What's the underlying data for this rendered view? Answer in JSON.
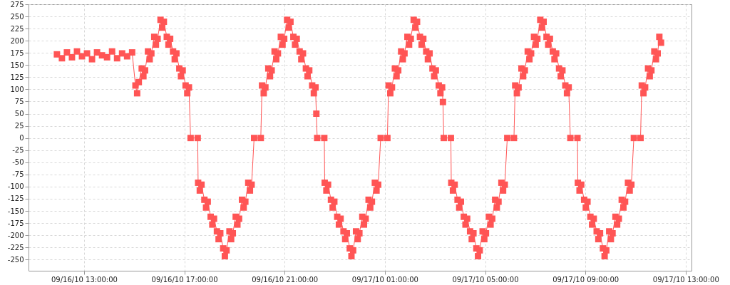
{
  "chart_data": {
    "type": "line",
    "marker": "square",
    "line_style": "solid",
    "grid": true,
    "xlim": [
      "--09-16T10:47",
      "--09-17T13:14"
    ],
    "ylim": [
      -273,
      275
    ],
    "xticks": [
      {
        "value": "--09-16T13:00",
        "label": "09/16/10 13:00:00"
      },
      {
        "value": "--09-16T17:00",
        "label": "09/16/10 17:00:00"
      },
      {
        "value": "--09-16T21:00",
        "label": "09/16/10 21:00:00"
      },
      {
        "value": "--09-17T01:00",
        "label": "09/17/10 01:00:00"
      },
      {
        "value": "--09-17T05:00",
        "label": "09/17/10 05:00:00"
      },
      {
        "value": "--09-17T09:00",
        "label": "09/17/10 09:00:00"
      },
      {
        "value": "--09-17T13:00",
        "label": "09/17/10 13:00:00"
      }
    ],
    "yticks": [
      -250,
      -225,
      -200,
      -175,
      -150,
      -125,
      -100,
      -75,
      -50,
      -25,
      0,
      25,
      50,
      75,
      100,
      125,
      150,
      175,
      200,
      225,
      250,
      275
    ],
    "series": [
      {
        "color": "#ff5555",
        "x": [
          "--09-16T11:55",
          "--09-16T12:07",
          "--09-16T12:19",
          "--09-16T12:31",
          "--09-16T12:43",
          "--09-16T12:55",
          "--09-16T13:07",
          "--09-16T13:19",
          "--09-16T13:31",
          "--09-16T13:43",
          "--09-16T13:55",
          "--09-16T14:07",
          "--09-16T14:19",
          "--09-16T14:31",
          "--09-16T14:43",
          "--09-16T14:55",
          "--09-16T15:03",
          "--09-16T15:07",
          "--09-16T15:11",
          "--09-16T15:18",
          "--09-16T15:22",
          "--09-16T15:26",
          "--09-16T15:33",
          "--09-16T15:37",
          "--09-16T15:41",
          "--09-16T15:48",
          "--09-16T15:52",
          "--09-16T15:56",
          "--09-16T16:03",
          "--09-16T16:07",
          "--09-16T16:11",
          "--09-16T16:18",
          "--09-16T16:22",
          "--09-16T16:26",
          "--09-16T16:33",
          "--09-16T16:37",
          "--09-16T16:41",
          "--09-16T16:48",
          "--09-16T16:52",
          "--09-16T16:56",
          "--09-16T17:03",
          "--09-16T17:07",
          "--09-16T17:11",
          "--09-16T17:15",
          "--09-16T17:32",
          "--09-16T17:33",
          "--09-16T17:37",
          "--09-16T17:41",
          "--09-16T17:48",
          "--09-16T17:52",
          "--09-16T17:56",
          "--09-16T18:03",
          "--09-16T18:07",
          "--09-16T18:11",
          "--09-16T18:18",
          "--09-16T18:22",
          "--09-16T18:26",
          "--09-16T18:33",
          "--09-16T18:37",
          "--09-16T18:41",
          "--09-16T18:48",
          "--09-16T18:52",
          "--09-16T18:56",
          "--09-16T19:03",
          "--09-16T19:07",
          "--09-16T19:11",
          "--09-16T19:18",
          "--09-16T19:22",
          "--09-16T19:26",
          "--09-16T19:33",
          "--09-16T19:37",
          "--09-16T19:41",
          "--09-16T19:47",
          "--09-16T20:03",
          "--09-16T20:06",
          "--09-16T20:10",
          "--09-16T20:14",
          "--09-16T20:21",
          "--09-16T20:25",
          "--09-16T20:29",
          "--09-16T20:36",
          "--09-16T20:40",
          "--09-16T20:44",
          "--09-16T20:51",
          "--09-16T20:55",
          "--09-16T20:59",
          "--09-16T21:06",
          "--09-16T21:10",
          "--09-16T21:14",
          "--09-16T21:21",
          "--09-16T21:25",
          "--09-16T21:29",
          "--09-16T21:36",
          "--09-16T21:40",
          "--09-16T21:44",
          "--09-16T21:51",
          "--09-16T21:55",
          "--09-16T21:59",
          "--09-16T22:06",
          "--09-16T22:10",
          "--09-16T22:14",
          "--09-16T22:16",
          "--09-16T22:18",
          "--09-16T22:35",
          "--09-16T22:36",
          "--09-16T22:40",
          "--09-16T22:44",
          "--09-16T22:51",
          "--09-16T22:55",
          "--09-16T22:59",
          "--09-16T23:06",
          "--09-16T23:10",
          "--09-16T23:14",
          "--09-16T23:21",
          "--09-16T23:25",
          "--09-16T23:29",
          "--09-16T23:36",
          "--09-16T23:40",
          "--09-16T23:44",
          "--09-16T23:51",
          "--09-16T23:55",
          "--09-16T23:59",
          "--09-17T00:06",
          "--09-17T00:10",
          "--09-17T00:14",
          "--09-17T00:21",
          "--09-17T00:25",
          "--09-17T00:29",
          "--09-17T00:36",
          "--09-17T00:40",
          "--09-17T00:44",
          "--09-17T00:50",
          "--09-17T01:06",
          "--09-17T01:09",
          "--09-17T01:13",
          "--09-17T01:17",
          "--09-17T01:24",
          "--09-17T01:28",
          "--09-17T01:32",
          "--09-17T01:39",
          "--09-17T01:43",
          "--09-17T01:47",
          "--09-17T01:54",
          "--09-17T01:58",
          "--09-17T02:02",
          "--09-17T02:09",
          "--09-17T02:13",
          "--09-17T02:17",
          "--09-17T02:24",
          "--09-17T02:28",
          "--09-17T02:32",
          "--09-17T02:39",
          "--09-17T02:43",
          "--09-17T02:47",
          "--09-17T02:54",
          "--09-17T02:58",
          "--09-17T03:02",
          "--09-17T03:09",
          "--09-17T03:13",
          "--09-17T03:17",
          "--09-17T03:19",
          "--09-17T03:21",
          "--09-17T03:38",
          "--09-17T03:39",
          "--09-17T03:43",
          "--09-17T03:47",
          "--09-17T03:54",
          "--09-17T03:58",
          "--09-17T04:02",
          "--09-17T04:09",
          "--09-17T04:13",
          "--09-17T04:17",
          "--09-17T04:24",
          "--09-17T04:28",
          "--09-17T04:32",
          "--09-17T04:39",
          "--09-17T04:43",
          "--09-17T04:47",
          "--09-17T04:54",
          "--09-17T04:58",
          "--09-17T05:02",
          "--09-17T05:09",
          "--09-17T05:13",
          "--09-17T05:17",
          "--09-17T05:24",
          "--09-17T05:28",
          "--09-17T05:32",
          "--09-17T05:39",
          "--09-17T05:43",
          "--09-17T05:47",
          "--09-17T05:53",
          "--09-17T06:09",
          "--09-17T06:12",
          "--09-17T06:16",
          "--09-17T06:20",
          "--09-17T06:27",
          "--09-17T06:31",
          "--09-17T06:35",
          "--09-17T06:42",
          "--09-17T06:46",
          "--09-17T06:50",
          "--09-17T06:57",
          "--09-17T07:01",
          "--09-17T07:05",
          "--09-17T07:12",
          "--09-17T07:16",
          "--09-17T07:20",
          "--09-17T07:27",
          "--09-17T07:31",
          "--09-17T07:35",
          "--09-17T07:42",
          "--09-17T07:46",
          "--09-17T07:50",
          "--09-17T07:57",
          "--09-17T08:01",
          "--09-17T08:05",
          "--09-17T08:12",
          "--09-17T08:16",
          "--09-17T08:20",
          "--09-17T08:24",
          "--09-17T08:41",
          "--09-17T08:42",
          "--09-17T08:46",
          "--09-17T08:50",
          "--09-17T08:57",
          "--09-17T09:01",
          "--09-17T09:05",
          "--09-17T09:12",
          "--09-17T09:16",
          "--09-17T09:20",
          "--09-17T09:27",
          "--09-17T09:31",
          "--09-17T09:35",
          "--09-17T09:42",
          "--09-17T09:46",
          "--09-17T09:50",
          "--09-17T09:57",
          "--09-17T10:01",
          "--09-17T10:05",
          "--09-17T10:12",
          "--09-17T10:16",
          "--09-17T10:20",
          "--09-17T10:27",
          "--09-17T10:31",
          "--09-17T10:35",
          "--09-17T10:42",
          "--09-17T10:46",
          "--09-17T10:50",
          "--09-17T10:56",
          "--09-17T11:12",
          "--09-17T11:15",
          "--09-17T11:19",
          "--09-17T11:23",
          "--09-17T11:30",
          "--09-17T11:34",
          "--09-17T11:38",
          "--09-17T11:45",
          "--09-17T11:49",
          "--09-17T11:53",
          "--09-17T11:57",
          "--09-17T12:01"
        ],
        "values": [
          172,
          164,
          176,
          166,
          178,
          168,
          174,
          162,
          176,
          170,
          166,
          178,
          164,
          174,
          168,
          176,
          108,
          92,
          115,
          143,
          127,
          139,
          178,
          162,
          174,
          208,
          192,
          204,
          243,
          227,
          239,
          208,
          192,
          204,
          178,
          162,
          174,
          143,
          127,
          139,
          108,
          92,
          104,
          0,
          0,
          -92,
          -108,
          -96,
          -127,
          -143,
          -131,
          -162,
          -178,
          -166,
          -192,
          -208,
          -196,
          -227,
          -243,
          -231,
          -192,
          -208,
          -196,
          -162,
          -178,
          -166,
          -127,
          -143,
          -131,
          -92,
          -108,
          -96,
          0,
          0,
          108,
          92,
          104,
          143,
          127,
          139,
          178,
          162,
          174,
          208,
          192,
          204,
          243,
          227,
          239,
          208,
          192,
          204,
          178,
          162,
          174,
          143,
          127,
          139,
          108,
          92,
          104,
          50,
          0,
          0,
          -92,
          -108,
          -96,
          -127,
          -143,
          -131,
          -162,
          -178,
          -166,
          -192,
          -208,
          -196,
          -227,
          -243,
          -231,
          -192,
          -208,
          -196,
          -162,
          -178,
          -166,
          -127,
          -143,
          -131,
          -92,
          -108,
          -96,
          0,
          0,
          108,
          92,
          104,
          143,
          127,
          139,
          178,
          162,
          174,
          208,
          192,
          204,
          243,
          227,
          239,
          208,
          192,
          204,
          178,
          162,
          174,
          143,
          127,
          139,
          108,
          92,
          104,
          74,
          0,
          0,
          -92,
          -108,
          -96,
          -127,
          -143,
          -131,
          -162,
          -178,
          -166,
          -192,
          -208,
          -196,
          -227,
          -243,
          -231,
          -192,
          -208,
          -196,
          -162,
          -178,
          -166,
          -127,
          -143,
          -131,
          -92,
          -108,
          -96,
          0,
          0,
          108,
          92,
          104,
          143,
          127,
          139,
          178,
          162,
          174,
          208,
          192,
          204,
          243,
          227,
          239,
          208,
          192,
          204,
          178,
          162,
          174,
          143,
          127,
          139,
          108,
          92,
          104,
          0,
          0,
          -92,
          -108,
          -96,
          -127,
          -143,
          -131,
          -162,
          -178,
          -166,
          -192,
          -208,
          -196,
          -227,
          -243,
          -231,
          -192,
          -208,
          -196,
          -162,
          -178,
          -166,
          -127,
          -143,
          -131,
          -92,
          -108,
          -96,
          0,
          0,
          108,
          92,
          104,
          143,
          127,
          139,
          178,
          162,
          174,
          208,
          196
        ]
      }
    ]
  }
}
